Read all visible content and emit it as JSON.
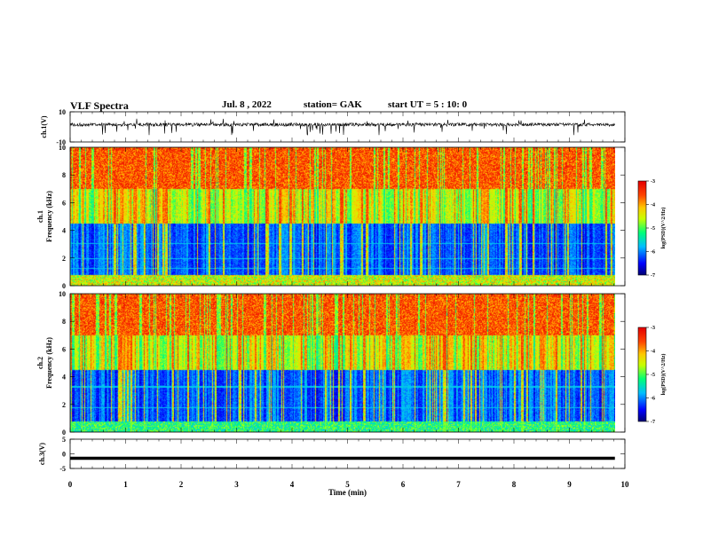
{
  "header": {
    "title": "VLF Spectra",
    "date": "Jul. 8 , 2022",
    "station": "station= GAK",
    "start_ut": "start UT = 5 : 10: 0"
  },
  "chart_data": [
    {
      "type": "line",
      "name": "ch1-waveform",
      "ylabel": "ch.1(V)",
      "ylim": [
        -10,
        10
      ],
      "y_ticks": [
        "10",
        "-10"
      ],
      "xlim": [
        0,
        10
      ],
      "x_data_end": 9.82,
      "baseline": 1.5,
      "description_values": "dense noisy waveform around +1.5 V with spikes to about -5 V"
    },
    {
      "type": "heatmap",
      "name": "ch1-spectrogram",
      "ylabel": [
        "ch.1",
        "Frequency (kHz)"
      ],
      "xlim": [
        0,
        10
      ],
      "ylim": [
        0,
        10
      ],
      "y_ticks": [
        "0",
        "2",
        "4",
        "6",
        "8",
        "10"
      ],
      "colorbar": {
        "label": "log(PSD)(V^2/Hz)",
        "ticks": [
          "-3",
          "-4",
          "-5",
          "-6",
          "-7"
        ],
        "range": [
          -7,
          -3
        ]
      }
    },
    {
      "type": "heatmap",
      "name": "ch2-spectrogram",
      "ylabel": [
        "ch.2",
        "Frequency (kHz)"
      ],
      "xlim": [
        0,
        10
      ],
      "ylim": [
        0,
        10
      ],
      "y_ticks": [
        "0",
        "2",
        "4",
        "6",
        "8",
        "10"
      ],
      "colorbar": {
        "label": "log(PSD)(V^2/Hz)",
        "ticks": [
          "-3",
          "-4",
          "-5",
          "-6",
          "-7"
        ],
        "range": [
          -7,
          -3
        ]
      }
    },
    {
      "type": "line",
      "name": "ch3-waveform",
      "ylabel": "ch.3(V)",
      "ylim": [
        -5,
        5
      ],
      "y_ticks": [
        "5",
        "0",
        "-5"
      ],
      "xlim": [
        0,
        10
      ],
      "x_data_end": 9.82,
      "constant_value": -1.5
    }
  ],
  "xaxis": {
    "label": "Time (min)",
    "ticks": [
      "0",
      "1",
      "2",
      "3",
      "4",
      "5",
      "6",
      "7",
      "8",
      "9",
      "10"
    ]
  },
  "colors": {
    "colormap": [
      "#000080",
      "#0000ff",
      "#00c0ff",
      "#00ff80",
      "#c0ff00",
      "#ff8000",
      "#ff2000",
      "#ff0000"
    ]
  }
}
